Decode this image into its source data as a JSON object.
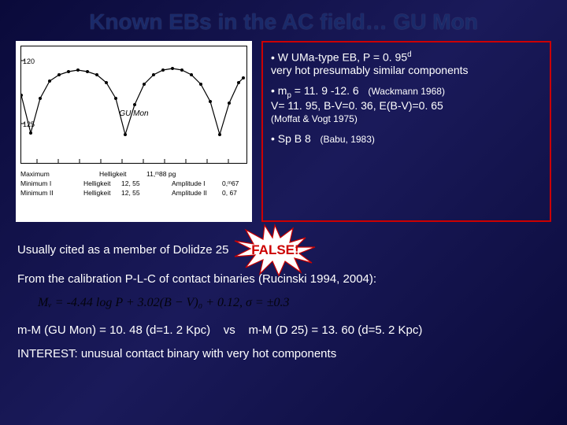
{
  "title": "Known EBs in the AC field… GU Mon",
  "figure": {
    "y_ticks": [
      {
        "v": 120,
        "y": 18
      },
      {
        "v": 125,
        "y": 98
      }
    ],
    "object_label": "GU Mon",
    "curve_points": [
      [
        0,
        62
      ],
      [
        12,
        110
      ],
      [
        24,
        66
      ],
      [
        36,
        44
      ],
      [
        48,
        36
      ],
      [
        60,
        32
      ],
      [
        72,
        30
      ],
      [
        84,
        32
      ],
      [
        96,
        36
      ],
      [
        108,
        46
      ],
      [
        120,
        66
      ],
      [
        132,
        112
      ],
      [
        144,
        74
      ],
      [
        156,
        48
      ],
      [
        168,
        36
      ],
      [
        180,
        30
      ],
      [
        192,
        28
      ],
      [
        204,
        30
      ],
      [
        216,
        36
      ],
      [
        228,
        48
      ],
      [
        240,
        70
      ],
      [
        252,
        112
      ],
      [
        264,
        72
      ],
      [
        276,
        46
      ],
      [
        282,
        40
      ]
    ],
    "table": [
      [
        "Maximum",
        "Helligkeit",
        "11,ᵐ88  pg",
        "",
        ""
      ],
      [
        "Minimum I",
        "Helligkeit",
        "12, 55",
        "Amplitude I",
        "0,ᵐ67"
      ],
      [
        "Minimum II",
        "Helligkeit",
        "12, 55",
        "Amplitude II",
        "0, 67"
      ]
    ]
  },
  "info": {
    "b1a": "W UMa-type EB,   P = 0. 95",
    "b1a_sup": "d",
    "b1b": "very hot presumably similar components",
    "b2a_pre": "m",
    "b2a_sub": "p",
    "b2a_post": " = 11. 9 -12. 6",
    "b2a_cite": "(Wackmann 1968)",
    "b2b": "V= 11. 95, B-V=0. 36, E(B-V)=0. 65",
    "b2c": "(Moffat & Vogt 1975)",
    "b3a": "Sp B 8",
    "b3a_cite": "(Babu, 1983)"
  },
  "lower": {
    "l1": "Usually cited as a member of Dolidze 25",
    "false_label": "FALSE!",
    "l2": "From the calibration P-L-C of contact binaries (Rucinski 1994, 2004):",
    "formula": "Mᵥ = -4.44 log P + 3.02(B − V)₀ + 0.12,   σ = ±0.3",
    "l3a": "m-M (GU Mon) = 10. 48  (d=1. 2 Kpc)",
    "l3_vs": "vs",
    "l3b": "m-M (D 25) = 13. 60   (d=5. 2 Kpc)",
    "l4": "INTEREST: unusual contact binary with very hot components"
  },
  "colors": {
    "box_border": "#c00",
    "false_color": "#c00"
  }
}
